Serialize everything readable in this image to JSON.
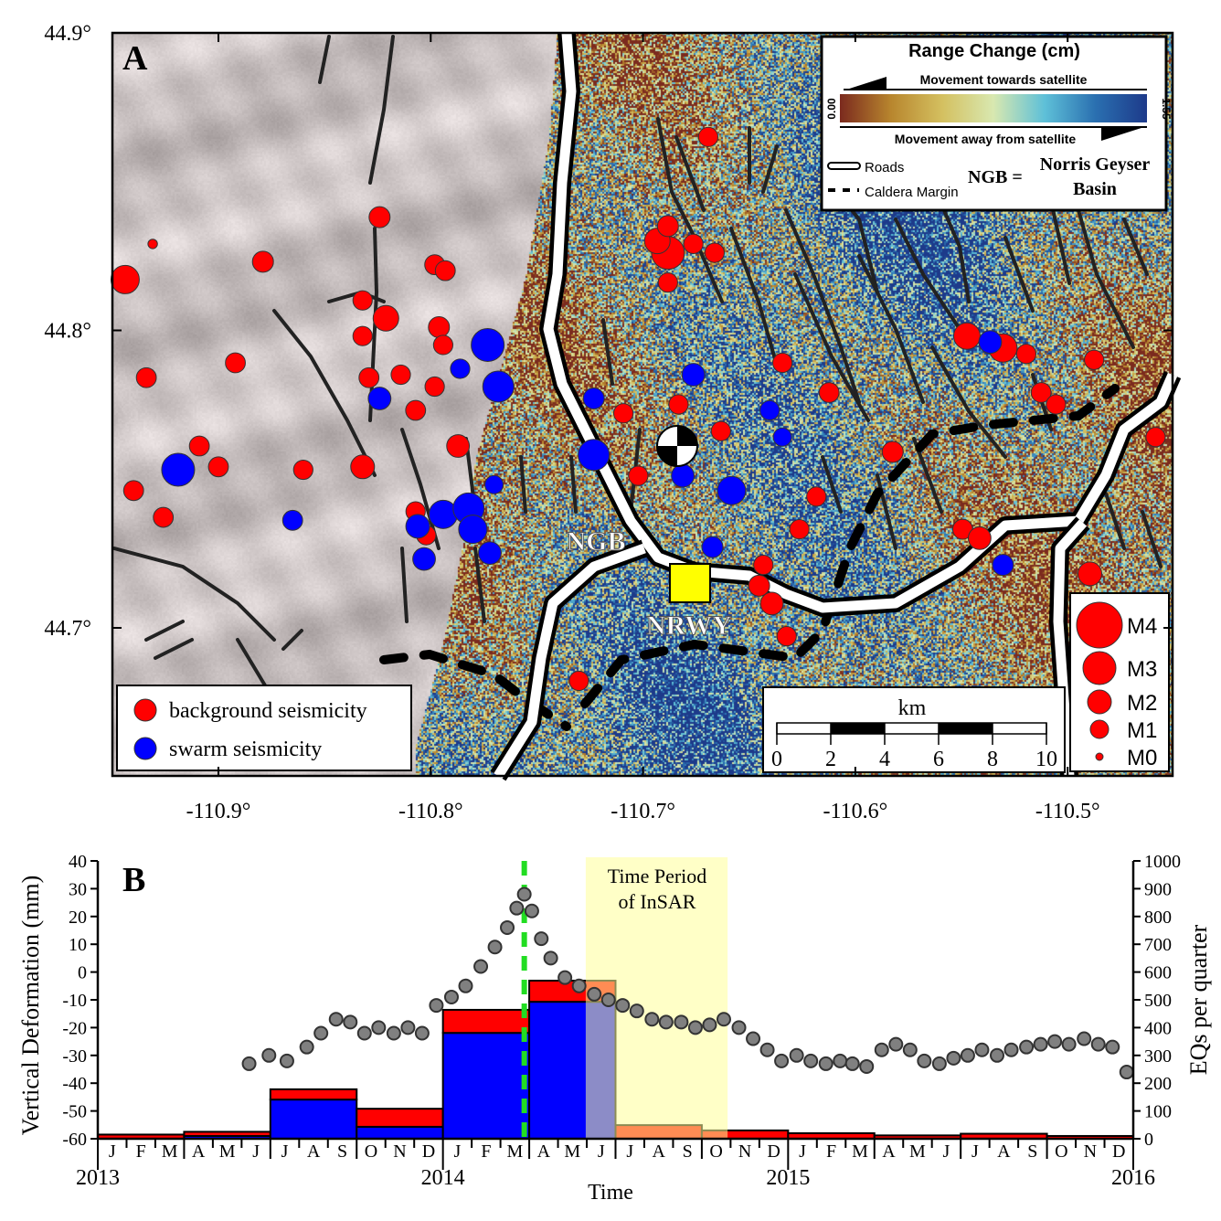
{
  "panel_a": {
    "label": "A",
    "lat_ticks": [
      "44.9°",
      "44.8°",
      "44.7°"
    ],
    "lon_ticks": [
      "-110.9°",
      "-110.8°",
      "-110.7°",
      "-110.6°",
      "-110.5°"
    ],
    "colorbar": {
      "title": "Range Change (cm)",
      "towards": "Movement towards satellite",
      "away": "Movement away from satellite",
      "min_label": "0.00",
      "max_label": "1.55",
      "colors": [
        "#7b2a1e",
        "#b8862e",
        "#d4c060",
        "#d8e8b0",
        "#5ec0d8",
        "#2a6fb0",
        "#1d3a8a"
      ]
    },
    "key": {
      "roads": "Roads",
      "caldera": "Caldera Margin",
      "ngb_abbrev": "NGB =",
      "ngb_line1": "Norris Geyser",
      "ngb_line2": "Basin"
    },
    "place_labels": {
      "ngb": "NGB",
      "nrwy": "NRWY"
    },
    "seismicity_legend": {
      "background": "background seismicity",
      "swarm": "swarm seismicity"
    },
    "scale_bar": {
      "unit": "km",
      "ticks": [
        "0",
        "2",
        "4",
        "6",
        "8",
        "10"
      ]
    },
    "magnitude_legend": [
      "M4",
      "M3",
      "M2",
      "M1",
      "M0"
    ],
    "colors": {
      "background": "#ff0000",
      "swarm": "#0000ff",
      "station": "#ffff00"
    }
  },
  "chart_data": [
    {
      "type": "scatter",
      "panel": "A",
      "xlim": [
        -110.95,
        -110.45
      ],
      "ylim": [
        44.65,
        44.9
      ],
      "events": [
        {
          "type": "background",
          "lon": -110.944,
          "lat": 44.817,
          "mag": 2.5
        },
        {
          "type": "background",
          "lon": -110.931,
          "lat": 44.829,
          "mag": 0.2
        },
        {
          "type": "background",
          "lon": -110.824,
          "lat": 44.838,
          "mag": 1.5
        },
        {
          "type": "background",
          "lon": -110.879,
          "lat": 44.823,
          "mag": 1.5
        },
        {
          "type": "background",
          "lon": -110.821,
          "lat": 44.804,
          "mag": 2.2
        },
        {
          "type": "background",
          "lon": -110.832,
          "lat": 44.81,
          "mag": 1.2
        },
        {
          "type": "background",
          "lon": -110.798,
          "lat": 44.822,
          "mag": 1.3
        },
        {
          "type": "background",
          "lon": -110.793,
          "lat": 44.82,
          "mag": 1.3
        },
        {
          "type": "background",
          "lon": -110.796,
          "lat": 44.801,
          "mag": 1.5
        },
        {
          "type": "background",
          "lon": -110.794,
          "lat": 44.795,
          "mag": 1.2
        },
        {
          "type": "background",
          "lon": -110.832,
          "lat": 44.798,
          "mag": 1.2
        },
        {
          "type": "background",
          "lon": -110.892,
          "lat": 44.789,
          "mag": 1.3
        },
        {
          "type": "background",
          "lon": -110.934,
          "lat": 44.784,
          "mag": 1.3
        },
        {
          "type": "background",
          "lon": -110.829,
          "lat": 44.784,
          "mag": 1.3
        },
        {
          "type": "background",
          "lon": -110.814,
          "lat": 44.785,
          "mag": 1.2
        },
        {
          "type": "background",
          "lon": -110.807,
          "lat": 44.773,
          "mag": 1.3
        },
        {
          "type": "background",
          "lon": -110.798,
          "lat": 44.781,
          "mag": 1.2
        },
        {
          "type": "background",
          "lon": -110.909,
          "lat": 44.761,
          "mag": 1.3
        },
        {
          "type": "background",
          "lon": -110.9,
          "lat": 44.754,
          "mag": 1.3
        },
        {
          "type": "background",
          "lon": -110.94,
          "lat": 44.746,
          "mag": 1.3
        },
        {
          "type": "background",
          "lon": -110.926,
          "lat": 44.737,
          "mag": 1.3
        },
        {
          "type": "background",
          "lon": -110.86,
          "lat": 44.753,
          "mag": 1.2
        },
        {
          "type": "background",
          "lon": -110.832,
          "lat": 44.754,
          "mag": 2.0
        },
        {
          "type": "background",
          "lon": -110.787,
          "lat": 44.761,
          "mag": 1.8
        },
        {
          "type": "background",
          "lon": -110.807,
          "lat": 44.739,
          "mag": 1.2
        },
        {
          "type": "background",
          "lon": -110.802,
          "lat": 44.731,
          "mag": 1.2
        },
        {
          "type": "background",
          "lon": -110.688,
          "lat": 44.826,
          "mag": 3.0
        },
        {
          "type": "background",
          "lon": -110.693,
          "lat": 44.83,
          "mag": 2.2
        },
        {
          "type": "background",
          "lon": -110.688,
          "lat": 44.835,
          "mag": 1.5
        },
        {
          "type": "background",
          "lon": -110.676,
          "lat": 44.829,
          "mag": 1.2
        },
        {
          "type": "background",
          "lon": -110.666,
          "lat": 44.826,
          "mag": 1.2
        },
        {
          "type": "background",
          "lon": -110.688,
          "lat": 44.816,
          "mag": 1.2
        },
        {
          "type": "background",
          "lon": -110.669,
          "lat": 44.865,
          "mag": 1.2
        },
        {
          "type": "background",
          "lon": -110.709,
          "lat": 44.772,
          "mag": 1.2
        },
        {
          "type": "background",
          "lon": -110.683,
          "lat": 44.775,
          "mag": 1.2
        },
        {
          "type": "background",
          "lon": -110.663,
          "lat": 44.766,
          "mag": 1.2
        },
        {
          "type": "background",
          "lon": -110.702,
          "lat": 44.751,
          "mag": 1.2
        },
        {
          "type": "background",
          "lon": -110.634,
          "lat": 44.789,
          "mag": 1.2
        },
        {
          "type": "background",
          "lon": -110.612,
          "lat": 44.779,
          "mag": 1.3
        },
        {
          "type": "background",
          "lon": -110.582,
          "lat": 44.759,
          "mag": 1.5
        },
        {
          "type": "background",
          "lon": -110.618,
          "lat": 44.744,
          "mag": 1.2
        },
        {
          "type": "background",
          "lon": -110.626,
          "lat": 44.733,
          "mag": 1.2
        },
        {
          "type": "background",
          "lon": -110.643,
          "lat": 44.721,
          "mag": 1.2
        },
        {
          "type": "background",
          "lon": -110.645,
          "lat": 44.714,
          "mag": 1.5
        },
        {
          "type": "background",
          "lon": -110.639,
          "lat": 44.708,
          "mag": 1.8
        },
        {
          "type": "background",
          "lon": -110.632,
          "lat": 44.697,
          "mag": 1.2
        },
        {
          "type": "background",
          "lon": -110.547,
          "lat": 44.798,
          "mag": 2.3
        },
        {
          "type": "background",
          "lon": -110.53,
          "lat": 44.794,
          "mag": 2.5
        },
        {
          "type": "background",
          "lon": -110.519,
          "lat": 44.792,
          "mag": 1.2
        },
        {
          "type": "background",
          "lon": -110.512,
          "lat": 44.779,
          "mag": 1.3
        },
        {
          "type": "background",
          "lon": -110.505,
          "lat": 44.775,
          "mag": 1.2
        },
        {
          "type": "background",
          "lon": -110.487,
          "lat": 44.79,
          "mag": 1.2
        },
        {
          "type": "background",
          "lon": -110.549,
          "lat": 44.733,
          "mag": 1.3
        },
        {
          "type": "background",
          "lon": -110.541,
          "lat": 44.73,
          "mag": 1.8
        },
        {
          "type": "background",
          "lon": -110.489,
          "lat": 44.718,
          "mag": 2.0
        },
        {
          "type": "background",
          "lon": -110.458,
          "lat": 44.764,
          "mag": 1.2
        },
        {
          "type": "background",
          "lon": -110.73,
          "lat": 44.682,
          "mag": 1.2
        },
        {
          "type": "swarm",
          "lon": -110.919,
          "lat": 44.753,
          "mag": 3.0
        },
        {
          "type": "swarm",
          "lon": -110.865,
          "lat": 44.736,
          "mag": 1.3
        },
        {
          "type": "swarm",
          "lon": -110.824,
          "lat": 44.777,
          "mag": 1.8
        },
        {
          "type": "swarm",
          "lon": -110.773,
          "lat": 44.795,
          "mag": 3.0
        },
        {
          "type": "swarm",
          "lon": -110.768,
          "lat": 44.781,
          "mag": 2.8
        },
        {
          "type": "swarm",
          "lon": -110.786,
          "lat": 44.787,
          "mag": 1.2
        },
        {
          "type": "swarm",
          "lon": -110.794,
          "lat": 44.738,
          "mag": 2.5
        },
        {
          "type": "swarm",
          "lon": -110.782,
          "lat": 44.74,
          "mag": 2.8
        },
        {
          "type": "swarm",
          "lon": -110.78,
          "lat": 44.733,
          "mag": 2.5
        },
        {
          "type": "swarm",
          "lon": -110.806,
          "lat": 44.734,
          "mag": 2.0
        },
        {
          "type": "swarm",
          "lon": -110.803,
          "lat": 44.723,
          "mag": 1.8
        },
        {
          "type": "swarm",
          "lon": -110.772,
          "lat": 44.725,
          "mag": 1.8
        },
        {
          "type": "swarm",
          "lon": -110.723,
          "lat": 44.758,
          "mag": 2.8
        },
        {
          "type": "swarm",
          "lon": -110.723,
          "lat": 44.777,
          "mag": 1.5
        },
        {
          "type": "swarm",
          "lon": -110.676,
          "lat": 44.785,
          "mag": 1.8
        },
        {
          "type": "swarm",
          "lon": -110.681,
          "lat": 44.751,
          "mag": 1.8
        },
        {
          "type": "swarm",
          "lon": -110.658,
          "lat": 44.746,
          "mag": 2.5
        },
        {
          "type": "swarm",
          "lon": -110.667,
          "lat": 44.727,
          "mag": 1.5
        },
        {
          "type": "swarm",
          "lon": -110.64,
          "lat": 44.773,
          "mag": 1.2
        },
        {
          "type": "swarm",
          "lon": -110.634,
          "lat": 44.764,
          "mag": 1.0
        },
        {
          "type": "swarm",
          "lon": -110.536,
          "lat": 44.796,
          "mag": 1.8
        },
        {
          "type": "swarm",
          "lon": -110.53,
          "lat": 44.721,
          "mag": 1.5
        },
        {
          "type": "swarm",
          "lon": -110.77,
          "lat": 44.748,
          "mag": 1.0
        }
      ]
    },
    {
      "type": "bar+scatter",
      "panel": "B",
      "label": "B",
      "xlabel": "Time",
      "ylabel": "Vertical Deformation (mm)",
      "y2label": "EQs per quarter",
      "ylim": [
        -60,
        40
      ],
      "y2lim": [
        0,
        1000
      ],
      "yticks": [
        "40",
        "30",
        "20",
        "10",
        "0",
        "-10",
        "-20",
        "-30",
        "-40",
        "-50",
        "-60"
      ],
      "y2ticks": [
        "1000",
        "900",
        "800",
        "700",
        "600",
        "500",
        "400",
        "300",
        "200",
        "100",
        "0"
      ],
      "xlim": [
        "2013-01-01",
        "2016-01-01"
      ],
      "year_labels": [
        "2013",
        "2014",
        "2015",
        "2016"
      ],
      "month_labels": [
        "J",
        "F",
        "M",
        "A",
        "M",
        "J",
        "J",
        "A",
        "S",
        "O",
        "N",
        "D"
      ],
      "insar_period": {
        "label_line1": "Time Period",
        "label_line2": "of InSAR",
        "start": "2014-06-01",
        "end": "2014-10-29",
        "color": "#ffff99"
      },
      "peak_marker_date": "2014-03-28",
      "peak_marker_color": "#22dd22",
      "quarters": [
        "2013Q1",
        "2013Q2",
        "2013Q3",
        "2013Q4",
        "2014Q1",
        "2014Q2",
        "2014Q3",
        "2014Q4",
        "2015Q1",
        "2015Q2",
        "2015Q3",
        "2015Q4"
      ],
      "series": [
        {
          "kind": "bar",
          "color": "#0000ff",
          "values": [
            0,
            10,
            141,
            43,
            381,
            493,
            0,
            0,
            0,
            0,
            0,
            0
          ]
        },
        {
          "kind": "bar",
          "color": "#ff0000",
          "values": [
            15,
            15,
            37,
            65,
            83,
            76,
            49,
            30,
            20,
            12,
            18,
            10
          ]
        },
        {
          "kind": "scatter",
          "color": "#808080",
          "points": [
            [
              "2013-06-10",
              -33
            ],
            [
              "2013-07-01",
              -30
            ],
            [
              "2013-07-20",
              -32
            ],
            [
              "2013-08-10",
              -27
            ],
            [
              "2013-08-25",
              -22
            ],
            [
              "2013-09-10",
              -17
            ],
            [
              "2013-09-25",
              -18
            ],
            [
              "2013-10-10",
              -22
            ],
            [
              "2013-10-25",
              -20
            ],
            [
              "2013-11-10",
              -22
            ],
            [
              "2013-11-25",
              -20
            ],
            [
              "2013-12-10",
              -22
            ],
            [
              "2013-12-25",
              -12
            ],
            [
              "2014-01-10",
              -9
            ],
            [
              "2014-01-25",
              -5
            ],
            [
              "2014-02-10",
              2
            ],
            [
              "2014-02-25",
              9
            ],
            [
              "2014-03-10",
              16
            ],
            [
              "2014-03-20",
              23
            ],
            [
              "2014-03-28",
              28
            ],
            [
              "2014-04-05",
              22
            ],
            [
              "2014-04-15",
              12
            ],
            [
              "2014-04-25",
              5
            ],
            [
              "2014-05-10",
              -2
            ],
            [
              "2014-05-25",
              -5
            ],
            [
              "2014-06-10",
              -8
            ],
            [
              "2014-06-25",
              -10
            ],
            [
              "2014-07-10",
              -12
            ],
            [
              "2014-07-25",
              -14
            ],
            [
              "2014-08-10",
              -17
            ],
            [
              "2014-08-25",
              -18
            ],
            [
              "2014-09-10",
              -18
            ],
            [
              "2014-09-25",
              -20
            ],
            [
              "2014-10-10",
              -19
            ],
            [
              "2014-10-25",
              -17
            ],
            [
              "2014-11-10",
              -20
            ],
            [
              "2014-11-25",
              -24
            ],
            [
              "2014-12-10",
              -28
            ],
            [
              "2014-12-25",
              -32
            ],
            [
              "2015-01-10",
              -30
            ],
            [
              "2015-01-25",
              -32
            ],
            [
              "2015-02-10",
              -33
            ],
            [
              "2015-02-25",
              -32
            ],
            [
              "2015-03-10",
              -33
            ],
            [
              "2015-03-25",
              -34
            ],
            [
              "2015-04-10",
              -28
            ],
            [
              "2015-04-25",
              -26
            ],
            [
              "2015-05-10",
              -28
            ],
            [
              "2015-05-25",
              -32
            ],
            [
              "2015-06-10",
              -33
            ],
            [
              "2015-06-25",
              -31
            ],
            [
              "2015-07-10",
              -30
            ],
            [
              "2015-07-25",
              -28
            ],
            [
              "2015-08-10",
              -30
            ],
            [
              "2015-08-25",
              -28
            ],
            [
              "2015-09-10",
              -27
            ],
            [
              "2015-09-25",
              -26
            ],
            [
              "2015-10-10",
              -25
            ],
            [
              "2015-10-25",
              -26
            ],
            [
              "2015-11-10",
              -24
            ],
            [
              "2015-11-25",
              -26
            ],
            [
              "2015-12-10",
              -27
            ],
            [
              "2015-12-25",
              -36
            ]
          ]
        }
      ]
    }
  ]
}
